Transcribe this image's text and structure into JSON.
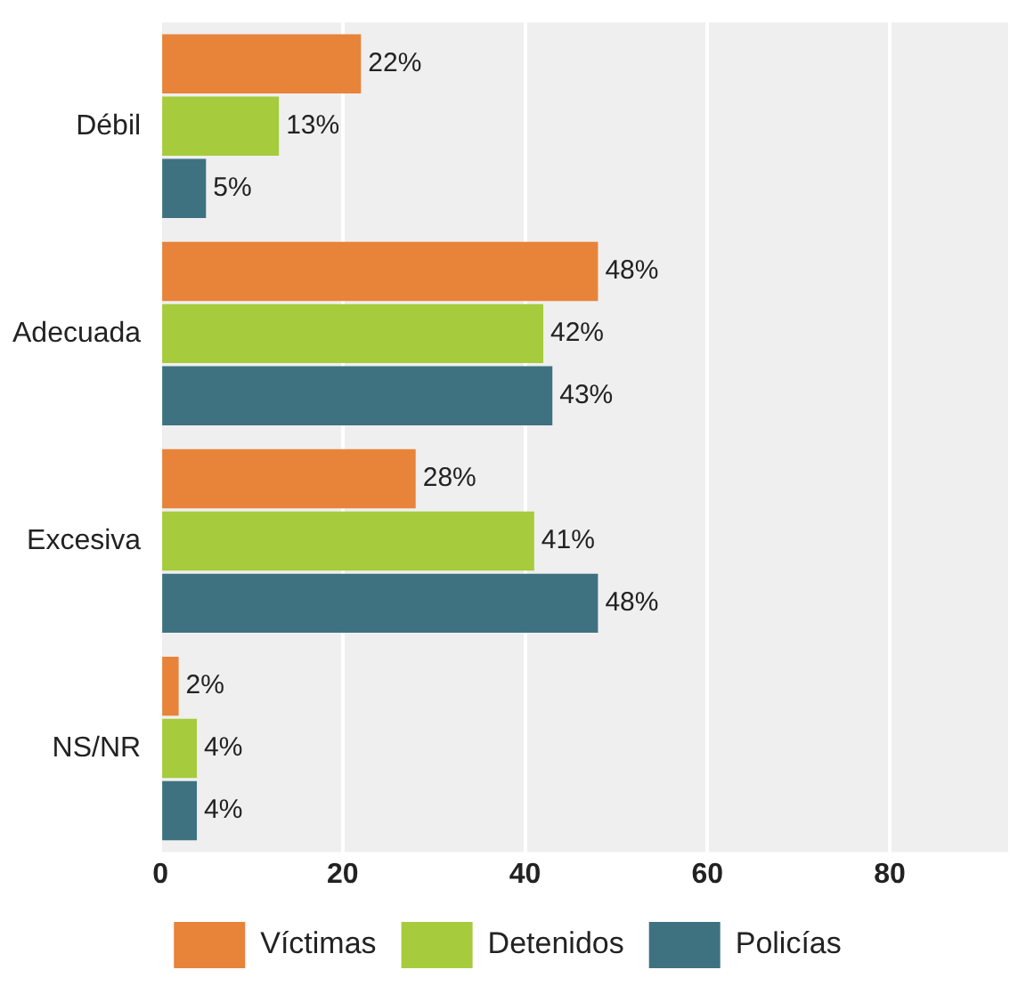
{
  "chart_data": {
    "type": "bar",
    "orientation": "horizontal",
    "categories": [
      "Débil",
      "Adecuada",
      "Excesiva",
      "NS/NR"
    ],
    "series": [
      {
        "name": "Víctimas",
        "color": "#e8833a",
        "values": [
          22,
          48,
          28,
          2
        ],
        "value_labels": [
          "22%",
          "48%",
          "28%",
          "2%"
        ]
      },
      {
        "name": "Detenidos",
        "color": "#a6cb3d",
        "values": [
          13,
          42,
          41,
          4
        ],
        "value_labels": [
          "13%",
          "42%",
          "41%",
          "4%"
        ]
      },
      {
        "name": "Policías",
        "color": "#3e7281",
        "values": [
          5,
          43,
          48,
          4
        ],
        "value_labels": [
          "5%",
          "43%",
          "48%",
          "4%"
        ]
      }
    ],
    "xlim": [
      0,
      93
    ],
    "xticks": [
      0,
      20,
      40,
      60,
      80
    ],
    "grid": "x",
    "legend": "bottom"
  }
}
